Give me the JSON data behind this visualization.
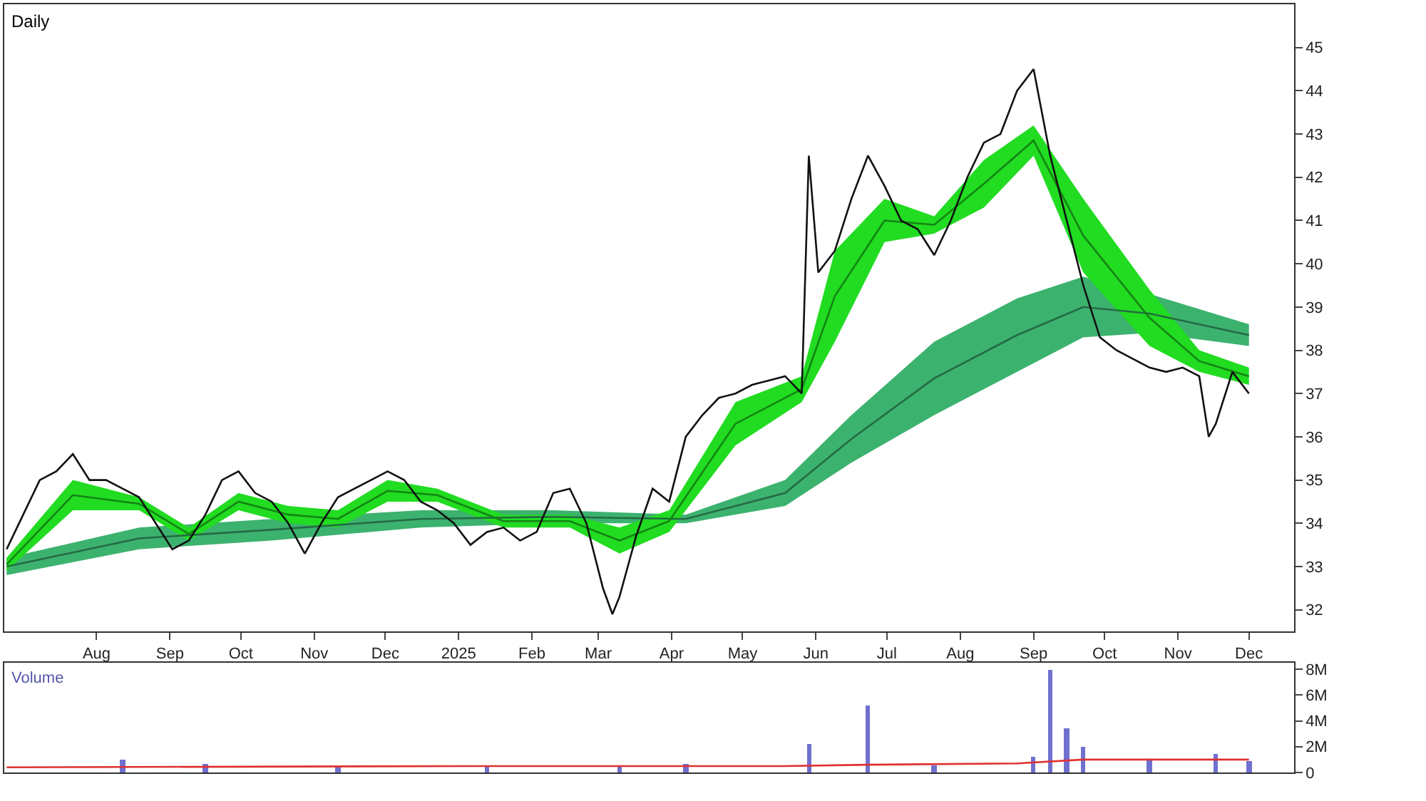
{
  "chart_data": [
    {
      "type": "line",
      "title": "Daily",
      "xlim": [
        "2024-06-23",
        "2025-12-20"
      ],
      "ylim": [
        31.5,
        46
      ],
      "yticks": [
        32,
        33,
        34,
        35,
        36,
        37,
        38,
        39,
        40,
        41,
        42,
        43,
        44,
        45
      ],
      "xticks": [
        {
          "value": "2024-08-01",
          "label": "Aug"
        },
        {
          "value": "2024-09-01",
          "label": "Sep"
        },
        {
          "value": "2024-10-01",
          "label": "Oct"
        },
        {
          "value": "2024-11-01",
          "label": "Nov"
        },
        {
          "value": "2024-12-01",
          "label": "Dec"
        },
        {
          "value": "2025-01-01",
          "label": "2025"
        },
        {
          "value": "2025-02-01",
          "label": "Feb"
        },
        {
          "value": "2025-03-01",
          "label": "Mar"
        },
        {
          "value": "2025-04-01",
          "label": "Apr"
        },
        {
          "value": "2025-05-01",
          "label": "May"
        },
        {
          "value": "2025-06-01",
          "label": "Jun"
        },
        {
          "value": "2025-07-01",
          "label": "Jul"
        },
        {
          "value": "2025-08-01",
          "label": "Aug"
        },
        {
          "value": "2025-09-01",
          "label": "Sep"
        },
        {
          "value": "2025-10-01",
          "label": "Oct"
        },
        {
          "value": "2025-11-01",
          "label": "Nov"
        },
        {
          "value": "2025-12-01",
          "label": "Dec"
        }
      ],
      "series": [
        {
          "type": "line",
          "color": "#246b43",
          "x": [
            "2024-06-24",
            "2024-08-19",
            "2024-10-14",
            "2024-12-16",
            "2025-02-10",
            "2025-04-07",
            "2025-05-19",
            "2025-06-16",
            "2025-07-21",
            "2025-08-25",
            "2025-09-22",
            "2025-10-20",
            "2025-12-01"
          ],
          "lower": [
            32.8,
            33.4,
            33.6,
            33.9,
            34.0,
            34.0,
            34.4,
            35.4,
            36.5,
            37.5,
            38.3,
            38.4,
            38.1
          ],
          "upper": [
            33.2,
            33.9,
            34.1,
            34.3,
            34.3,
            34.2,
            35.0,
            36.5,
            38.2,
            39.2,
            39.7,
            39.3,
            38.6
          ],
          "values": [
            33.0,
            33.65,
            33.85,
            34.1,
            34.15,
            34.1,
            34.7,
            35.95,
            37.35,
            38.35,
            39.0,
            38.85,
            38.35
          ]
        },
        {
          "type": "line",
          "color": "#148414",
          "x": [
            "2024-06-24",
            "2024-07-22",
            "2024-08-19",
            "2024-09-09",
            "2024-09-30",
            "2024-10-21",
            "2024-11-11",
            "2024-12-02",
            "2024-12-23",
            "2025-01-20",
            "2025-02-17",
            "2025-03-10",
            "2025-03-31",
            "2025-04-28",
            "2025-05-26",
            "2025-06-09",
            "2025-06-30",
            "2025-07-21",
            "2025-08-11",
            "2025-09-01",
            "2025-09-22",
            "2025-10-20",
            "2025-11-10",
            "2025-12-01"
          ],
          "lower": [
            32.9,
            34.3,
            34.3,
            33.6,
            34.3,
            34.0,
            33.9,
            34.5,
            34.5,
            33.9,
            33.9,
            33.3,
            33.8,
            35.8,
            36.8,
            38.2,
            40.5,
            40.7,
            41.3,
            42.5,
            39.8,
            38.1,
            37.5,
            37.2
          ],
          "upper": [
            33.2,
            35.0,
            34.6,
            33.9,
            34.7,
            34.4,
            34.3,
            35.0,
            34.8,
            34.2,
            34.2,
            33.9,
            34.3,
            36.8,
            37.4,
            40.3,
            41.5,
            41.1,
            42.4,
            43.2,
            41.5,
            39.4,
            38.0,
            37.6
          ],
          "values": [
            33.05,
            34.65,
            34.45,
            33.75,
            34.5,
            34.2,
            34.1,
            34.75,
            34.65,
            34.05,
            34.05,
            33.6,
            34.05,
            36.3,
            37.1,
            39.25,
            41.0,
            40.9,
            41.85,
            42.85,
            40.65,
            38.75,
            37.75,
            37.4
          ]
        },
        {
          "color": "#111111",
          "values": [
            33.4,
            34.2,
            35.0,
            35.2,
            35.6,
            35.0,
            35.0,
            34.8,
            34.6,
            34.0,
            33.4,
            33.6,
            34.2,
            35.0,
            35.2,
            34.7,
            34.5,
            34.0,
            33.3,
            34.0,
            34.6,
            34.8,
            35.0,
            35.2,
            35.0,
            34.5,
            34.3,
            34.0,
            33.5,
            33.8,
            33.9,
            33.6,
            33.8,
            34.7,
            34.8,
            34.0,
            32.5,
            31.9,
            32.3,
            33.7,
            34.8,
            34.5,
            36.0,
            36.5,
            36.9,
            37.0,
            37.2,
            37.3,
            37.4,
            37.0,
            42.5,
            39.8,
            40.3,
            41.5,
            42.5,
            41.8,
            41.0,
            40.8,
            40.2,
            41.0,
            42.0,
            42.8,
            43.0,
            44.0,
            44.5,
            42.5,
            41.0,
            39.5,
            38.3,
            38.0,
            37.8,
            37.6,
            37.5,
            37.6,
            37.4,
            36.0,
            36.3,
            37.5,
            37.0
          ],
          "x": [
            "2024-06-24",
            "2024-07-01",
            "2024-07-08",
            "2024-07-15",
            "2024-07-22",
            "2024-07-29",
            "2024-08-05",
            "2024-08-12",
            "2024-08-19",
            "2024-08-26",
            "2024-09-02",
            "2024-09-09",
            "2024-09-16",
            "2024-09-23",
            "2024-09-30",
            "2024-10-07",
            "2024-10-14",
            "2024-10-21",
            "2024-10-28",
            "2024-11-04",
            "2024-11-11",
            "2024-11-18",
            "2024-11-25",
            "2024-12-02",
            "2024-12-09",
            "2024-12-16",
            "2024-12-23",
            "2024-12-30",
            "2025-01-06",
            "2025-01-13",
            "2025-01-20",
            "2025-01-27",
            "2025-02-03",
            "2025-02-10",
            "2025-02-17",
            "2025-02-24",
            "2025-03-03",
            "2025-03-07",
            "2025-03-10",
            "2025-03-17",
            "2025-03-24",
            "2025-03-31",
            "2025-04-07",
            "2025-04-14",
            "2025-04-21",
            "2025-04-28",
            "2025-05-05",
            "2025-05-12",
            "2025-05-19",
            "2025-05-26",
            "2025-05-29",
            "2025-06-02",
            "2025-06-09",
            "2025-06-16",
            "2025-06-23",
            "2025-06-30",
            "2025-07-07",
            "2025-07-14",
            "2025-07-21",
            "2025-07-28",
            "2025-08-04",
            "2025-08-11",
            "2025-08-18",
            "2025-08-25",
            "2025-09-01",
            "2025-09-08",
            "2025-09-15",
            "2025-09-22",
            "2025-09-29",
            "2025-10-06",
            "2025-10-13",
            "2025-10-20",
            "2025-10-27",
            "2025-11-03",
            "2025-11-10",
            "2025-11-14",
            "2025-11-17",
            "2025-11-24",
            "2025-12-01"
          ]
        }
      ]
    },
    {
      "type": "bar",
      "title": "Volume",
      "xlim": [
        "2024-06-23",
        "2025-12-20"
      ],
      "ylim": [
        0,
        8.5
      ],
      "yticks": [
        {
          "value": 0,
          "label": "0"
        },
        {
          "value": 2,
          "label": "2M"
        },
        {
          "value": 4,
          "label": "4M"
        },
        {
          "value": 6,
          "label": "6M"
        },
        {
          "value": 8,
          "label": "8M"
        }
      ],
      "tick_labels": "y",
      "series": [
        {
          "color": "#7070d0",
          "x": [
            "2024-08-12",
            "2024-09-16",
            "2024-11-11",
            "2025-01-13",
            "2025-03-10",
            "2025-04-07",
            "2025-05-29",
            "2025-06-23",
            "2025-07-21",
            "2025-09-01",
            "2025-09-08",
            "2025-09-15",
            "2025-09-22",
            "2025-10-20",
            "2025-11-17",
            "2025-12-01"
          ],
          "values": [
            1.0,
            0.7,
            0.4,
            0.4,
            0.6,
            0.7,
            2.2,
            5.2,
            0.6,
            1.2,
            8.0,
            3.4,
            2.0,
            1.0,
            1.4,
            0.9
          ]
        },
        {
          "type": "line",
          "color": "#e03030",
          "x": [
            "2024-06-24",
            "2025-01-06",
            "2025-05-19",
            "2025-06-23",
            "2025-08-25",
            "2025-09-22",
            "2025-12-01"
          ],
          "values": [
            0.4,
            0.5,
            0.5,
            0.6,
            0.7,
            1.0,
            1.0
          ]
        }
      ]
    }
  ]
}
